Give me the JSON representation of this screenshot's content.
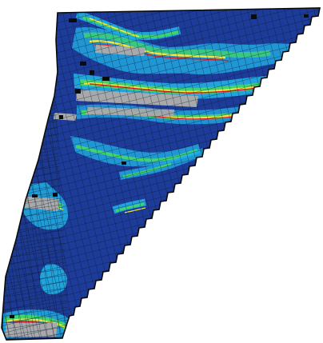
{
  "figure": {
    "background": "#ffffff",
    "palette": {
      "base_blue": "#1f3f9f",
      "deep_blue": "#162f7f",
      "cyan": "#22b6e8",
      "green": "#41d36e",
      "yellow": "#f2e63d",
      "red": "#d91f2d",
      "gray": "#a7a9ab",
      "mesh": "#0b0b0b"
    }
  }
}
